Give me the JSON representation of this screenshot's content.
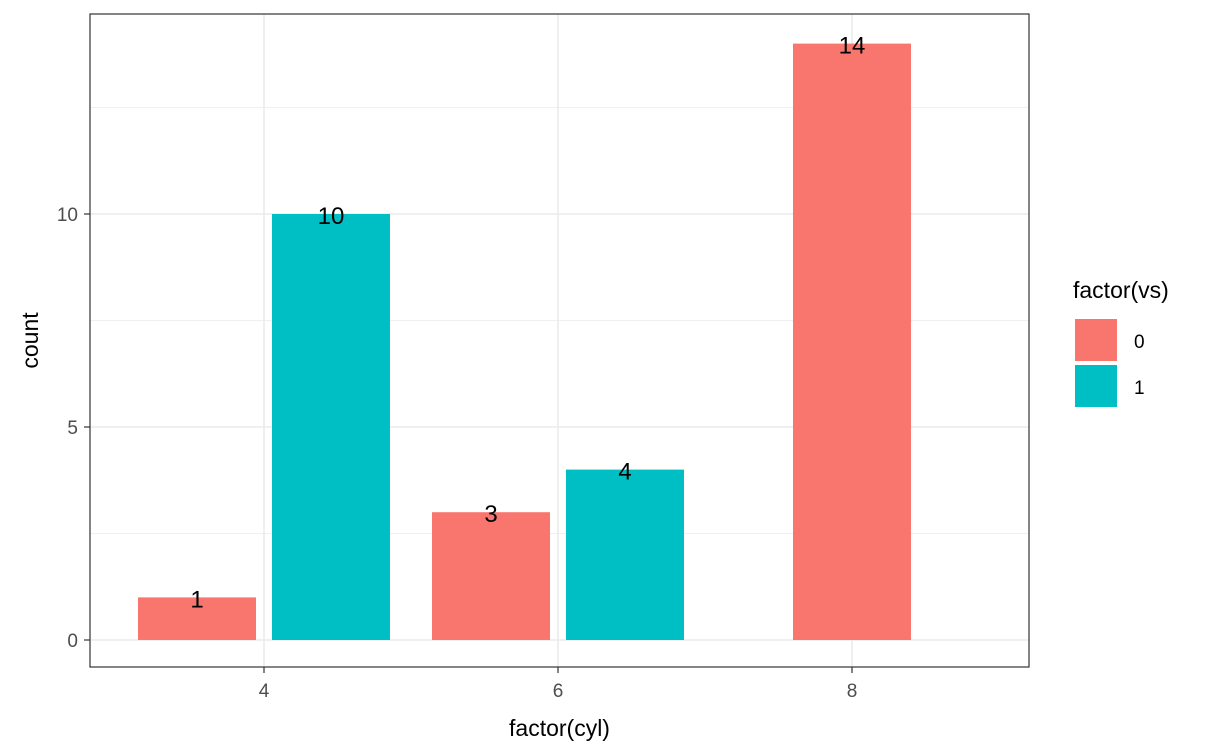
{
  "chart_data": {
    "type": "bar",
    "categories": [
      "4",
      "6",
      "8"
    ],
    "xlabel": "factor(cyl)",
    "ylabel": "count",
    "ylim": [
      0,
      14.7
    ],
    "y_ticks": [
      0,
      5,
      10
    ],
    "grid": true,
    "legend": {
      "title": "factor(vs)",
      "position": "right",
      "entries": [
        "0",
        "1"
      ]
    },
    "series": [
      {
        "name": "0",
        "color": "#F8766D",
        "values": [
          1,
          3,
          14
        ]
      },
      {
        "name": "1",
        "color": "#00BFC4",
        "values": [
          10,
          4,
          null
        ]
      }
    ],
    "data_labels": true
  }
}
